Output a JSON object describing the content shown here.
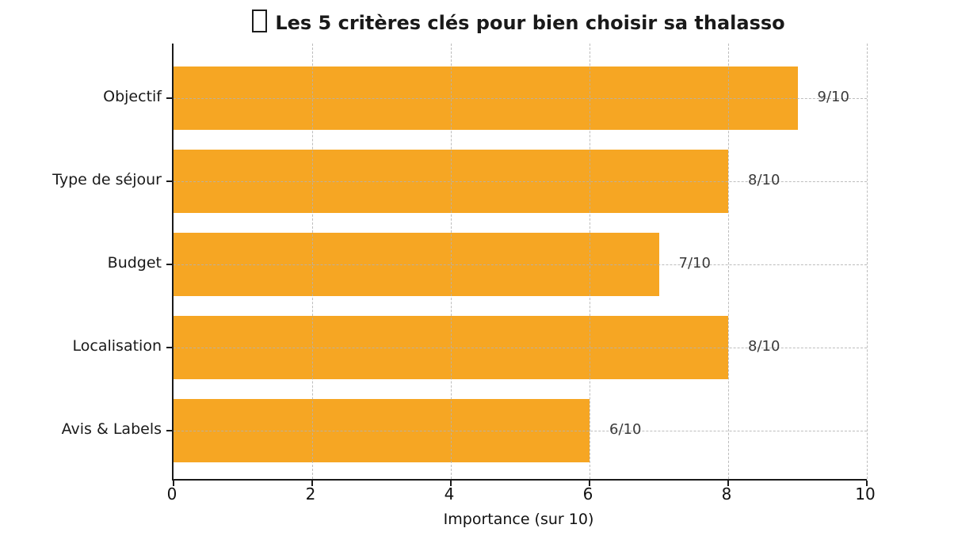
{
  "figure": {
    "title_icon": "missing-glyph-box"
  },
  "chart_data": {
    "type": "bar",
    "orientation": "horizontal",
    "title": "Les 5 critères clés pour bien choisir sa thalasso",
    "categories": [
      "Objectif",
      "Type de séjour",
      "Budget",
      "Localisation",
      "Avis & Labels"
    ],
    "values": [
      9,
      8,
      7,
      8,
      6
    ],
    "value_labels": [
      "9/10",
      "8/10",
      "7/10",
      "8/10",
      "6/10"
    ],
    "xlabel": "Importance (sur 10)",
    "ylabel": "",
    "xlim": [
      0,
      10
    ],
    "xticks": [
      0,
      2,
      4,
      6,
      8,
      10
    ],
    "xtick_labels": [
      "0",
      "2",
      "4",
      "6",
      "8",
      "10"
    ],
    "grid": {
      "style": "dashed",
      "axes": "both",
      "color": "#B2B2B2"
    },
    "legend": "none",
    "colors": {
      "bar": "#F6A623",
      "spine": "#1A1A1A",
      "tick_label": "#111111",
      "category_label": "#1A1A1A",
      "value_label": "#3A3A3A",
      "background": "#FFFFFF"
    }
  }
}
